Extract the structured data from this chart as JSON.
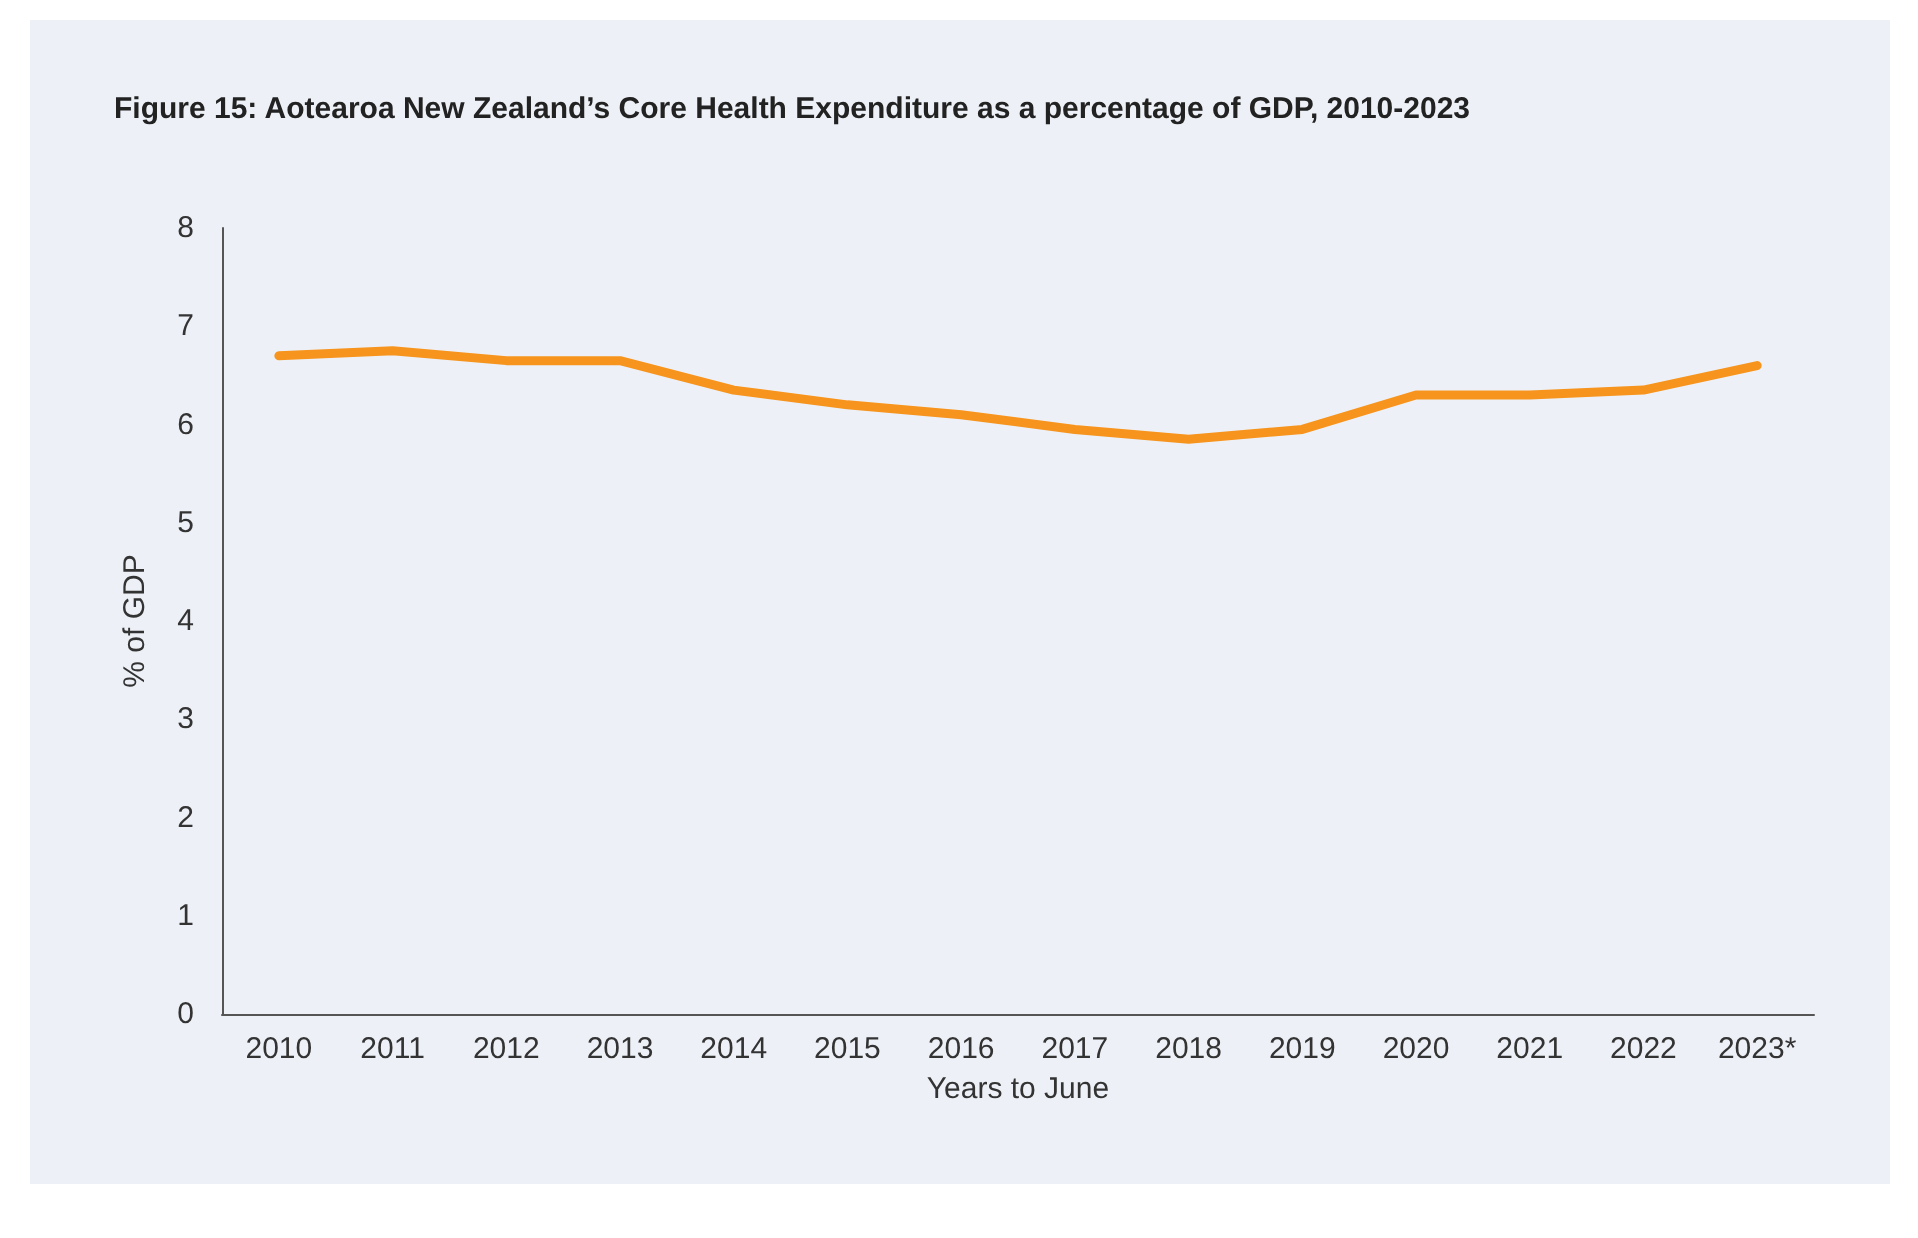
{
  "chart_data": {
    "type": "line",
    "title": "Figure 15: Aotearoa New Zealand’s Core Health Expenditure as a percentage of GDP, 2010-2023",
    "xlabel": "Years to June",
    "ylabel": "% of GDP",
    "categories": [
      "2010",
      "2011",
      "2012",
      "2013",
      "2014",
      "2015",
      "2016",
      "2017",
      "2018",
      "2019",
      "2020",
      "2021",
      "2022",
      "2023*"
    ],
    "series": [
      {
        "color": "#f7941d",
        "values": [
          6.7,
          6.75,
          6.65,
          6.65,
          6.35,
          6.2,
          6.1,
          5.95,
          5.85,
          5.95,
          6.3,
          6.3,
          6.35,
          6.6
        ]
      }
    ],
    "ylim": [
      0,
      8
    ],
    "yticks": [
      0,
      1,
      2,
      3,
      4,
      5,
      6,
      7,
      8
    ],
    "grid": false,
    "marker": "none",
    "line_style": "solid"
  }
}
